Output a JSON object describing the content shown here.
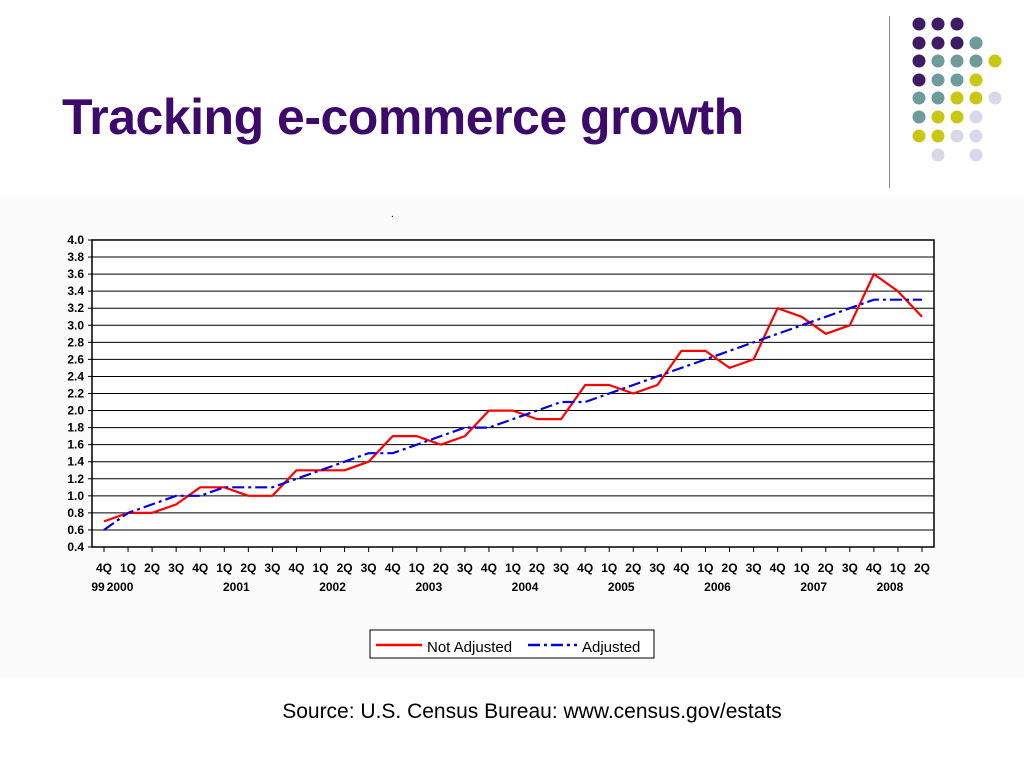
{
  "slide": {
    "title": "Tracking e-commerce growth",
    "source": "Source: U.S. Census Bureau:  www.census.gov/estats"
  },
  "decoration": {
    "dot_colors": {
      "purple": "#3f1a66",
      "teal": "#6f9c9b",
      "olive": "#c8c814",
      "lavender": "#d8d8e8"
    }
  },
  "colors": {
    "title": "#3d0a6b",
    "not_adjusted": "#ff0000",
    "adjusted": "#0000e0"
  },
  "chart_data": {
    "type": "line",
    "title": "",
    "xlabel": "",
    "ylabel": "",
    "ylim": [
      0.4,
      4.0
    ],
    "y_ticks": [
      "4.0",
      "3.8",
      "3.6",
      "3.4",
      "3.2",
      "3.0",
      "2.8",
      "2.6",
      "2.4",
      "2.2",
      "2.0",
      "1.8",
      "1.6",
      "1.4",
      "1.2",
      "1.0",
      "0.8",
      "0.6",
      "0.4"
    ],
    "quarter_labels": [
      "4Q",
      "1Q",
      "2Q",
      "3Q",
      "4Q",
      "1Q",
      "2Q",
      "3Q",
      "4Q",
      "1Q",
      "2Q",
      "3Q",
      "4Q",
      "1Q",
      "2Q",
      "3Q",
      "4Q",
      "1Q",
      "2Q",
      "3Q",
      "4Q",
      "1Q",
      "2Q",
      "3Q",
      "4Q",
      "1Q",
      "2Q",
      "3Q",
      "4Q",
      "1Q",
      "2Q",
      "3Q",
      "4Q",
      "1Q",
      "2Q"
    ],
    "year_labels": [
      "99",
      "2000",
      "2001",
      "2002",
      "2003",
      "2004",
      "2005",
      "2006",
      "2007",
      "2008"
    ],
    "grid": "horizontal",
    "legend_position": "bottom-center",
    "series": [
      {
        "name": "Not Adjusted",
        "values": [
          0.7,
          0.8,
          0.8,
          0.9,
          1.1,
          1.1,
          1.0,
          1.0,
          1.3,
          1.3,
          1.3,
          1.4,
          1.7,
          1.7,
          1.6,
          1.7,
          2.0,
          2.0,
          1.9,
          1.9,
          2.3,
          2.3,
          2.2,
          2.3,
          2.7,
          2.7,
          2.5,
          2.6,
          3.2,
          3.1,
          2.9,
          3.0,
          3.6,
          3.4,
          3.1
        ]
      },
      {
        "name": "Adjusted",
        "values": [
          0.6,
          0.8,
          0.9,
          1.0,
          1.0,
          1.1,
          1.1,
          1.1,
          1.2,
          1.3,
          1.4,
          1.5,
          1.5,
          1.6,
          1.7,
          1.8,
          1.8,
          1.9,
          2.0,
          2.1,
          2.1,
          2.2,
          2.3,
          2.4,
          2.5,
          2.6,
          2.7,
          2.8,
          2.9,
          3.0,
          3.1,
          3.2,
          3.3,
          3.3,
          3.3
        ]
      }
    ],
    "annotation": "."
  }
}
